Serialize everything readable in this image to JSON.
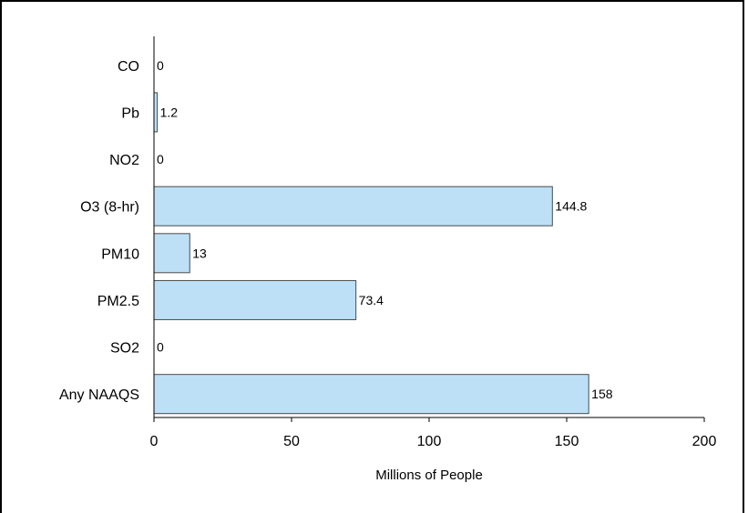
{
  "colors": {
    "bar_fill": "#bde0f7",
    "bar_stroke": "#4a4a4a",
    "axis": "#000000",
    "frame": "#000000"
  },
  "chart_data": {
    "type": "bar",
    "orientation": "horizontal",
    "title": "",
    "xlabel": "Millions of People",
    "ylabel": "",
    "categories": [
      "CO",
      "Pb",
      "NO2",
      "O3 (8-hr)",
      "PM10",
      "PM2.5",
      "SO2",
      "Any NAAQS"
    ],
    "values": [
      0,
      1.2,
      0,
      144.8,
      13,
      73.4,
      0,
      158
    ],
    "value_labels": [
      "0",
      "1.2",
      "0",
      "144.8",
      "13",
      "73.4",
      "0",
      "158"
    ],
    "xlim": [
      0,
      200
    ],
    "xticks": [
      0,
      50,
      100,
      150,
      200
    ],
    "xtick_labels": [
      "0",
      "50",
      "100",
      "150",
      "200"
    ],
    "grid": false,
    "legend": "none"
  }
}
